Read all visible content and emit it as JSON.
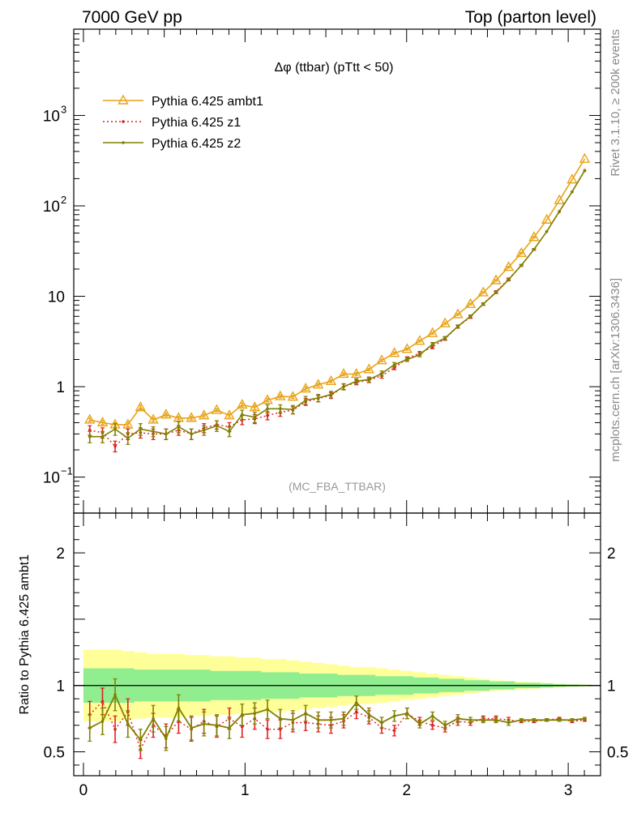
{
  "header": {
    "left": "7000 GeV pp",
    "right": "Top (parton level)"
  },
  "side_labels": {
    "rivet": "Rivet 3.1.10, ≥ 200k events",
    "mcplots": "mcplots.cern.ch [arXiv:1306.3436]"
  },
  "watermark": "(MC_FBA_TTBAR)",
  "chart_data": [
    {
      "type": "line",
      "title": "Δφ (ttbar) (pTtt < 50)",
      "xlabel": "",
      "ylabel": "",
      "ylog": true,
      "xlim": [
        -0.06,
        3.2
      ],
      "ylim": [
        0.04,
        9000
      ],
      "xticks": [
        "0",
        "1",
        "2",
        "3"
      ],
      "yticks": [
        {
          "base": "10",
          "exp": "−1",
          "value": 0.1
        },
        {
          "base": "1",
          "exp": "",
          "value": 1
        },
        {
          "base": "10",
          "exp": "",
          "value": 10
        },
        {
          "base": "10",
          "exp": "2",
          "value": 100
        },
        {
          "base": "10",
          "exp": "3",
          "value": 1000
        }
      ],
      "x": [
        0.039,
        0.118,
        0.196,
        0.275,
        0.353,
        0.432,
        0.511,
        0.589,
        0.668,
        0.746,
        0.825,
        0.903,
        0.982,
        1.06,
        1.139,
        1.218,
        1.296,
        1.375,
        1.453,
        1.532,
        1.61,
        1.689,
        1.767,
        1.846,
        1.924,
        2.003,
        2.081,
        2.16,
        2.238,
        2.317,
        2.395,
        2.474,
        2.553,
        2.631,
        2.71,
        2.788,
        2.867,
        2.945,
        3.024,
        3.102
      ],
      "series": [
        {
          "name": "Pythia 6.425 ambt1",
          "color": "#e8a317",
          "style": "solid",
          "marker": "triangle",
          "values": [
            0.43,
            0.4,
            0.38,
            0.38,
            0.59,
            0.43,
            0.49,
            0.45,
            0.45,
            0.48,
            0.55,
            0.48,
            0.63,
            0.59,
            0.71,
            0.78,
            0.77,
            0.95,
            1.05,
            1.15,
            1.38,
            1.38,
            1.55,
            1.95,
            2.35,
            2.6,
            3.2,
            3.9,
            5.0,
            6.3,
            8.2,
            11.0,
            15.0,
            21.0,
            30.0,
            45.0,
            70.0,
            115.0,
            195.0,
            330.0
          ],
          "errors": [
            0.02,
            0.02,
            0.02,
            0.02,
            0.03,
            0.02,
            0.02,
            0.02,
            0.02,
            0.02,
            0.02,
            0.02,
            0.03,
            0.03,
            0.03,
            0.03,
            0.03,
            0.04,
            0.04,
            0.04,
            0.05,
            0.05,
            0.05,
            0.06,
            0.07,
            0.07,
            0.08,
            0.1,
            0.12,
            0.14,
            0.17,
            0.2,
            0.3,
            0.4,
            0.5,
            0.7,
            1.0,
            1.5,
            2.2,
            3.3
          ]
        },
        {
          "name": "Pythia 6.425 z1",
          "color": "#e02020",
          "style": "dotted",
          "marker": "dot",
          "values": [
            0.33,
            0.31,
            0.22,
            0.3,
            0.31,
            0.3,
            0.3,
            0.33,
            0.3,
            0.35,
            0.38,
            0.36,
            0.43,
            0.44,
            0.48,
            0.52,
            0.55,
            0.68,
            0.74,
            0.8,
            1.0,
            1.12,
            1.18,
            1.32,
            1.62,
            2.05,
            2.35,
            2.75,
            3.4,
            4.6,
            5.9,
            8.2,
            11.2,
            15.5,
            22.0,
            33.0,
            52.0,
            86.0,
            143.0,
            245.0
          ],
          "errors": [
            0.04,
            0.04,
            0.03,
            0.04,
            0.04,
            0.04,
            0.04,
            0.04,
            0.04,
            0.04,
            0.04,
            0.04,
            0.05,
            0.05,
            0.05,
            0.05,
            0.05,
            0.06,
            0.06,
            0.06,
            0.07,
            0.07,
            0.07,
            0.08,
            0.08,
            0.09,
            0.1,
            0.12,
            0.14,
            0.16,
            0.2,
            0.25,
            0.3,
            0.4,
            0.5,
            0.6,
            0.8,
            1.2,
            1.6,
            2.4
          ]
        },
        {
          "name": "Pythia 6.425 z2",
          "color": "#808000",
          "style": "solid",
          "marker": "dot",
          "values": [
            0.28,
            0.28,
            0.34,
            0.27,
            0.34,
            0.32,
            0.3,
            0.36,
            0.3,
            0.33,
            0.37,
            0.32,
            0.49,
            0.46,
            0.57,
            0.57,
            0.56,
            0.71,
            0.75,
            0.82,
            1.0,
            1.15,
            1.2,
            1.4,
            1.75,
            2.0,
            2.25,
            2.95,
            3.45,
            4.65,
            6.0,
            8.2,
            11.0,
            15.2,
            22.0,
            33.0,
            52.0,
            87.0,
            143.0,
            247.0
          ],
          "errors": [
            0.04,
            0.04,
            0.05,
            0.04,
            0.05,
            0.04,
            0.04,
            0.05,
            0.04,
            0.04,
            0.05,
            0.04,
            0.06,
            0.06,
            0.06,
            0.06,
            0.06,
            0.07,
            0.07,
            0.07,
            0.08,
            0.08,
            0.08,
            0.09,
            0.1,
            0.1,
            0.11,
            0.13,
            0.14,
            0.17,
            0.2,
            0.25,
            0.3,
            0.4,
            0.5,
            0.6,
            0.8,
            1.2,
            1.6,
            2.4
          ]
        }
      ]
    },
    {
      "type": "line",
      "title": "",
      "xlabel": "",
      "ylabel": "Ratio to Pythia 6.425 ambt1",
      "xlim": [
        -0.06,
        3.2
      ],
      "ylim": [
        0.32,
        2.3
      ],
      "yticks": [
        "0.5",
        "1",
        "2"
      ],
      "band_inner": [
        0.13,
        0.13,
        0.13,
        0.13,
        0.12,
        0.12,
        0.12,
        0.12,
        0.12,
        0.12,
        0.11,
        0.11,
        0.11,
        0.11,
        0.1,
        0.1,
        0.1,
        0.09,
        0.09,
        0.09,
        0.08,
        0.08,
        0.08,
        0.07,
        0.07,
        0.07,
        0.06,
        0.06,
        0.05,
        0.05,
        0.04,
        0.04,
        0.03,
        0.03,
        0.02,
        0.02,
        0.015,
        0.01,
        0.008,
        0.006
      ],
      "band_outer": [
        0.27,
        0.27,
        0.27,
        0.26,
        0.25,
        0.24,
        0.24,
        0.24,
        0.23,
        0.23,
        0.22,
        0.22,
        0.21,
        0.21,
        0.2,
        0.2,
        0.19,
        0.18,
        0.17,
        0.16,
        0.15,
        0.14,
        0.14,
        0.13,
        0.12,
        0.11,
        0.1,
        0.09,
        0.08,
        0.07,
        0.06,
        0.05,
        0.04,
        0.035,
        0.03,
        0.025,
        0.02,
        0.015,
        0.01,
        0.008
      ],
      "band_inner_color": "#90ee90",
      "band_outer_color": "#ffff99",
      "series": [
        {
          "name": "Pythia 6.425 z1",
          "color": "#e02020",
          "style": "dotted",
          "values": [
            0.78,
            0.88,
            0.67,
            0.8,
            0.52,
            0.7,
            0.62,
            0.73,
            0.67,
            0.73,
            0.69,
            0.75,
            0.69,
            0.75,
            0.67,
            0.67,
            0.72,
            0.72,
            0.71,
            0.7,
            0.73,
            0.8,
            0.76,
            0.68,
            0.66,
            0.79,
            0.73,
            0.7,
            0.68,
            0.73,
            0.72,
            0.75,
            0.75,
            0.74,
            0.73,
            0.73,
            0.74,
            0.75,
            0.73,
            0.74
          ],
          "errors": [
            0.1,
            0.1,
            0.1,
            0.1,
            0.07,
            0.09,
            0.09,
            0.09,
            0.09,
            0.09,
            0.08,
            0.08,
            0.08,
            0.08,
            0.07,
            0.07,
            0.07,
            0.06,
            0.06,
            0.06,
            0.05,
            0.05,
            0.05,
            0.04,
            0.04,
            0.04,
            0.03,
            0.03,
            0.03,
            0.03,
            0.02,
            0.02,
            0.02,
            0.02,
            0.01,
            0.01,
            0.01,
            0.01,
            0.01,
            0.01
          ]
        },
        {
          "name": "Pythia 6.425 z2",
          "color": "#808000",
          "style": "solid",
          "values": [
            0.68,
            0.73,
            0.93,
            0.71,
            0.59,
            0.75,
            0.6,
            0.83,
            0.68,
            0.71,
            0.7,
            0.68,
            0.78,
            0.79,
            0.82,
            0.75,
            0.74,
            0.79,
            0.74,
            0.74,
            0.75,
            0.87,
            0.78,
            0.72,
            0.77,
            0.79,
            0.71,
            0.77,
            0.7,
            0.75,
            0.74,
            0.74,
            0.74,
            0.72,
            0.74,
            0.74,
            0.74,
            0.74,
            0.74,
            0.75
          ],
          "errors": [
            0.1,
            0.1,
            0.12,
            0.1,
            0.08,
            0.1,
            0.09,
            0.1,
            0.09,
            0.09,
            0.08,
            0.08,
            0.08,
            0.08,
            0.07,
            0.07,
            0.07,
            0.06,
            0.06,
            0.06,
            0.05,
            0.05,
            0.05,
            0.04,
            0.04,
            0.04,
            0.03,
            0.03,
            0.03,
            0.03,
            0.02,
            0.02,
            0.02,
            0.02,
            0.01,
            0.01,
            0.01,
            0.01,
            0.01,
            0.01
          ]
        }
      ]
    }
  ]
}
